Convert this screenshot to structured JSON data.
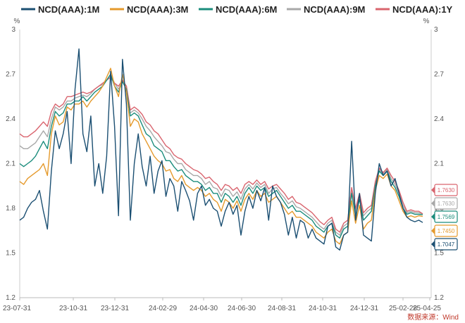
{
  "chart_data": {
    "type": "line",
    "title": "",
    "y_unit_left": "%",
    "y_unit_right": "%",
    "ylim": [
      1.2,
      3.0
    ],
    "y_ticks": [
      "1.2",
      "1.5",
      "1.8",
      "2.1",
      "2.4",
      "2.7",
      "3"
    ],
    "x_ticks": [
      "23-07-31",
      "23-10-31",
      "23-12-31",
      "24-02-29",
      "24-04-30",
      "24-06-30",
      "24-08-31",
      "24-10-31",
      "24-12-31",
      "25-02-28",
      "25-04-25"
    ],
    "legend_position": "top",
    "source": "数据来源：Wind",
    "series": [
      {
        "name": "NCD(AAA):1M",
        "color": "#1b4f72",
        "end_value": "1.7047",
        "values": [
          1.72,
          1.74,
          1.8,
          1.84,
          1.86,
          1.92,
          1.78,
          1.66,
          2.05,
          2.32,
          2.2,
          2.3,
          2.45,
          2.1,
          2.6,
          2.87,
          2.3,
          2.18,
          2.42,
          1.95,
          2.1,
          1.9,
          2.15,
          2.72,
          2.35,
          1.75,
          2.8,
          2.5,
          1.72,
          2.1,
          2.3,
          2.08,
          1.95,
          2.15,
          1.9,
          2.05,
          2.12,
          1.88,
          2.0,
          1.95,
          1.78,
          1.98,
          1.92,
          1.85,
          1.72,
          1.9,
          1.95,
          1.82,
          1.86,
          1.8,
          1.78,
          1.68,
          1.78,
          1.84,
          1.76,
          1.82,
          1.62,
          1.78,
          1.88,
          1.8,
          1.92,
          1.85,
          1.94,
          1.72,
          1.95,
          1.88,
          1.84,
          1.76,
          1.62,
          1.74,
          1.6,
          1.72,
          1.7,
          1.6,
          1.66,
          1.6,
          1.58,
          1.56,
          1.68,
          1.7,
          1.54,
          1.52,
          1.62,
          1.64,
          2.25,
          1.72,
          1.9,
          1.62,
          1.6,
          1.58,
          1.9,
          2.1,
          2.02,
          2.05,
          1.95,
          2.0,
          1.9,
          1.8,
          1.74,
          1.72,
          1.71,
          1.72,
          1.7047
        ]
      },
      {
        "name": "NCD(AAA):3M",
        "color": "#e59a2c",
        "end_value": "1.7450",
        "values": [
          1.98,
          1.96,
          2.0,
          2.02,
          2.04,
          2.06,
          2.1,
          2.02,
          2.3,
          2.42,
          2.36,
          2.38,
          2.48,
          2.46,
          2.5,
          2.5,
          2.52,
          2.48,
          2.52,
          2.55,
          2.58,
          2.62,
          2.68,
          2.74,
          2.62,
          2.55,
          2.7,
          2.58,
          2.35,
          2.4,
          2.38,
          2.3,
          2.25,
          2.2,
          2.15,
          2.12,
          2.1,
          2.05,
          2.06,
          2.0,
          1.98,
          2.02,
          1.96,
          1.94,
          1.92,
          1.94,
          1.92,
          1.88,
          1.9,
          1.86,
          1.84,
          1.78,
          1.86,
          1.84,
          1.8,
          1.85,
          1.78,
          1.86,
          1.9,
          1.86,
          1.92,
          1.88,
          1.9,
          1.84,
          1.86,
          1.88,
          1.84,
          1.8,
          1.76,
          1.78,
          1.74,
          1.74,
          1.72,
          1.7,
          1.68,
          1.64,
          1.62,
          1.6,
          1.64,
          1.66,
          1.58,
          1.56,
          1.62,
          1.64,
          1.85,
          1.7,
          1.82,
          1.66,
          1.7,
          1.72,
          1.92,
          2.02,
          2.0,
          2.03,
          1.95,
          1.92,
          1.85,
          1.78,
          1.74,
          1.75,
          1.74,
          1.75,
          1.745
        ]
      },
      {
        "name": "NCD(AAA):6M",
        "color": "#1a8c7c",
        "end_value": "1.7569",
        "values": [
          2.1,
          2.08,
          2.1,
          2.12,
          2.15,
          2.2,
          2.25,
          2.2,
          2.35,
          2.45,
          2.42,
          2.44,
          2.5,
          2.5,
          2.52,
          2.52,
          2.55,
          2.52,
          2.55,
          2.58,
          2.6,
          2.62,
          2.66,
          2.7,
          2.62,
          2.58,
          2.65,
          2.6,
          2.42,
          2.44,
          2.42,
          2.36,
          2.3,
          2.28,
          2.22,
          2.2,
          2.18,
          2.12,
          2.12,
          2.08,
          2.05,
          2.06,
          2.02,
          2.0,
          1.98,
          1.98,
          1.96,
          1.92,
          1.94,
          1.9,
          1.9,
          1.84,
          1.9,
          1.88,
          1.84,
          1.88,
          1.82,
          1.9,
          1.94,
          1.9,
          1.95,
          1.92,
          1.94,
          1.88,
          1.9,
          1.92,
          1.88,
          1.84,
          1.8,
          1.82,
          1.78,
          1.78,
          1.76,
          1.74,
          1.72,
          1.68,
          1.66,
          1.64,
          1.68,
          1.7,
          1.62,
          1.6,
          1.66,
          1.68,
          1.9,
          1.75,
          1.86,
          1.72,
          1.75,
          1.78,
          1.95,
          2.05,
          2.02,
          2.05,
          1.98,
          1.94,
          1.88,
          1.8,
          1.76,
          1.77,
          1.76,
          1.76,
          1.7569
        ]
      },
      {
        "name": "NCD(AAA):9M",
        "color": "#a8a8a8",
        "end_value": "1.7630",
        "values": [
          2.22,
          2.2,
          2.2,
          2.22,
          2.24,
          2.28,
          2.32,
          2.28,
          2.4,
          2.48,
          2.46,
          2.48,
          2.52,
          2.52,
          2.54,
          2.55,
          2.56,
          2.55,
          2.57,
          2.6,
          2.62,
          2.63,
          2.66,
          2.7,
          2.64,
          2.6,
          2.66,
          2.62,
          2.44,
          2.46,
          2.44,
          2.4,
          2.35,
          2.32,
          2.28,
          2.25,
          2.22,
          2.18,
          2.17,
          2.13,
          2.1,
          2.1,
          2.06,
          2.04,
          2.02,
          2.02,
          2.0,
          1.96,
          1.98,
          1.94,
          1.93,
          1.88,
          1.93,
          1.92,
          1.88,
          1.91,
          1.86,
          1.93,
          1.96,
          1.93,
          1.97,
          1.94,
          1.96,
          1.9,
          1.93,
          1.94,
          1.9,
          1.87,
          1.83,
          1.85,
          1.81,
          1.8,
          1.78,
          1.76,
          1.74,
          1.71,
          1.68,
          1.66,
          1.7,
          1.72,
          1.64,
          1.62,
          1.68,
          1.7,
          1.92,
          1.78,
          1.88,
          1.75,
          1.78,
          1.8,
          1.96,
          2.06,
          2.03,
          2.06,
          2.0,
          1.96,
          1.9,
          1.82,
          1.77,
          1.78,
          1.77,
          1.77,
          1.763
        ]
      },
      {
        "name": "NCD(AAA):1Y",
        "color": "#d9646e",
        "end_value": "1.7630",
        "values": [
          2.3,
          2.28,
          2.28,
          2.3,
          2.32,
          2.35,
          2.38,
          2.35,
          2.45,
          2.5,
          2.48,
          2.5,
          2.55,
          2.55,
          2.56,
          2.57,
          2.58,
          2.57,
          2.58,
          2.6,
          2.62,
          2.64,
          2.66,
          2.68,
          2.64,
          2.62,
          2.66,
          2.62,
          2.46,
          2.48,
          2.46,
          2.43,
          2.38,
          2.36,
          2.32,
          2.3,
          2.26,
          2.22,
          2.2,
          2.16,
          2.14,
          2.13,
          2.1,
          2.08,
          2.06,
          2.05,
          2.03,
          2.0,
          2.01,
          1.98,
          1.96,
          1.92,
          1.96,
          1.95,
          1.92,
          1.94,
          1.9,
          1.96,
          1.98,
          1.96,
          1.99,
          1.96,
          1.98,
          1.93,
          1.95,
          1.96,
          1.93,
          1.9,
          1.86,
          1.88,
          1.84,
          1.83,
          1.81,
          1.79,
          1.77,
          1.74,
          1.71,
          1.69,
          1.72,
          1.74,
          1.66,
          1.64,
          1.7,
          1.72,
          1.94,
          1.8,
          1.9,
          1.77,
          1.8,
          1.82,
          1.98,
          2.07,
          2.04,
          2.07,
          2.02,
          1.98,
          1.92,
          1.84,
          1.78,
          1.79,
          1.78,
          1.78,
          1.763
        ]
      }
    ]
  }
}
